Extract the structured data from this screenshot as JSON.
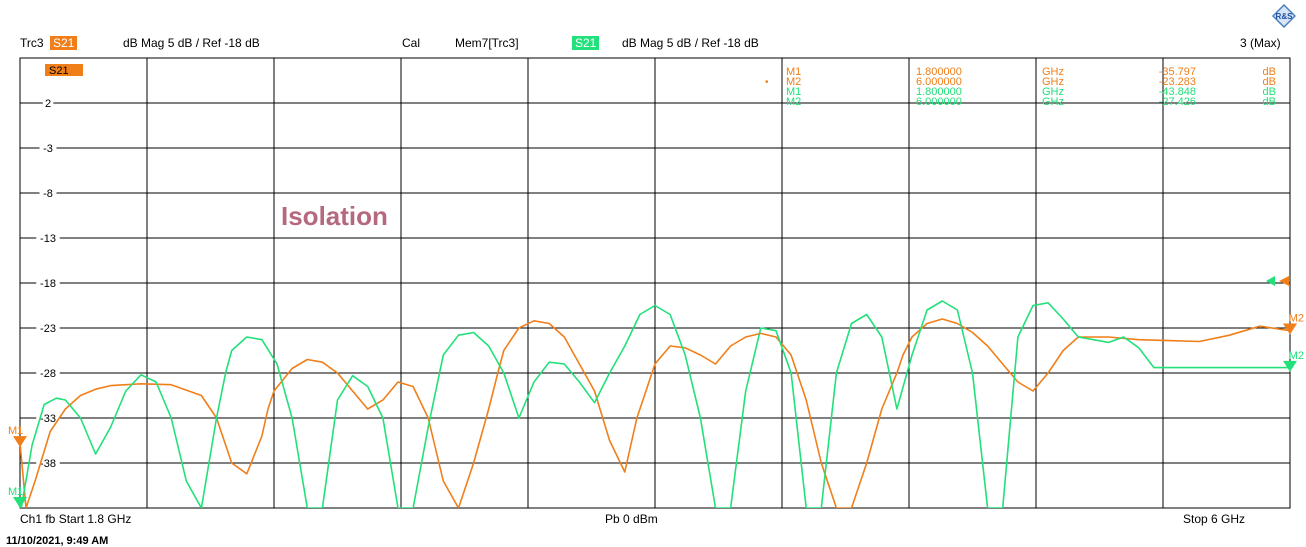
{
  "header": {
    "trace": "Trc3",
    "trace_param": "S21",
    "trace_format": "dB Mag  5 dB /  Ref -18 dB",
    "cal": "Cal",
    "mem": "Mem7[Trc3]",
    "mem_param": "S21",
    "mem_format": "dB Mag  5 dB /  Ref -18 dB",
    "max": "3 (Max)"
  },
  "logo": "R&S",
  "footer": {
    "channel": "Ch1  fb  Start  1.8 GHz",
    "power": "Pb   0 dBm",
    "stop": "Stop  6 GHz"
  },
  "date": "11/10/2021, 9:49 AM",
  "colors": {
    "trace": "#f07f1a",
    "memory": "#22e07a",
    "annotation": "#b5697e"
  },
  "chart_data": {
    "type": "line",
    "title": "Isolation",
    "param_badge": "S21",
    "xlabel": "",
    "ylabel": "",
    "xlim": [
      1.8,
      6.0
    ],
    "ylim": [
      -43,
      7
    ],
    "yticks": [
      2,
      -3,
      -8,
      -13,
      -18,
      -23,
      -28,
      -33,
      -38
    ],
    "ytick_labels": [
      "2",
      "-3",
      "-8",
      "-13",
      "-18",
      "-23",
      "-28",
      "-33",
      "-38"
    ],
    "reference_level": -18,
    "grid": true,
    "legend": "none",
    "series": [
      {
        "id": "trc3",
        "color": "#f07f1a",
        "x": [
          1.8,
          1.82,
          1.85,
          1.9,
          1.95,
          2.0,
          2.05,
          2.1,
          2.2,
          2.3,
          2.4,
          2.45,
          2.5,
          2.55,
          2.6,
          2.62,
          2.64,
          2.7,
          2.75,
          2.8,
          2.85,
          2.9,
          2.95,
          3.0,
          3.05,
          3.1,
          3.15,
          3.2,
          3.25,
          3.3,
          3.35,
          3.38,
          3.4,
          3.45,
          3.5,
          3.55,
          3.6,
          3.7,
          3.75,
          3.8,
          3.82,
          3.84,
          3.9,
          3.95,
          4.0,
          4.05,
          4.1,
          4.15,
          4.2,
          4.25,
          4.3,
          4.35,
          4.4,
          4.45,
          4.5,
          4.55,
          4.6,
          4.65,
          4.7,
          4.72,
          4.75,
          4.8,
          4.85,
          4.9,
          4.95,
          5.0,
          5.05,
          5.1,
          5.15,
          5.2,
          5.25,
          5.3,
          5.4,
          5.5,
          5.6,
          5.7,
          5.8,
          5.9,
          6.0
        ],
        "y": [
          -35.8,
          -43,
          -40,
          -34.5,
          -32,
          -30.5,
          -29.8,
          -29.4,
          -29.2,
          -29.3,
          -30.5,
          -33,
          -38,
          -39.2,
          -35,
          -32,
          -30,
          -27.5,
          -26.5,
          -26.8,
          -28,
          -30,
          -32,
          -31,
          -29,
          -29.5,
          -33,
          -40,
          -43,
          -38,
          -32,
          -28,
          -25.5,
          -23,
          -22.2,
          -22.5,
          -24,
          -30,
          -35.5,
          -39,
          -36,
          -33,
          -27,
          -25,
          -25.2,
          -26,
          -27,
          -25,
          -24,
          -23.6,
          -24,
          -26,
          -31,
          -38,
          -43,
          -43,
          -38,
          -32,
          -28,
          -26,
          -24,
          -22.5,
          -22,
          -22.5,
          -23.5,
          -25,
          -27,
          -29,
          -30,
          -28,
          -25.5,
          -24,
          -24,
          -24.3,
          -24.4,
          -24.5,
          -23.8,
          -22.8,
          -23.3
        ]
      },
      {
        "id": "mem7",
        "color": "#22e07a",
        "x": [
          1.8,
          1.84,
          1.88,
          1.92,
          1.95,
          2.0,
          2.05,
          2.1,
          2.15,
          2.2,
          2.25,
          2.3,
          2.35,
          2.4,
          2.45,
          2.48,
          2.5,
          2.55,
          2.6,
          2.65,
          2.7,
          2.75,
          2.8,
          2.85,
          2.9,
          2.95,
          3.0,
          3.05,
          3.1,
          3.15,
          3.2,
          3.25,
          3.3,
          3.35,
          3.4,
          3.45,
          3.5,
          3.55,
          3.6,
          3.65,
          3.7,
          3.75,
          3.8,
          3.85,
          3.9,
          3.95,
          4.0,
          4.05,
          4.1,
          4.15,
          4.2,
          4.25,
          4.3,
          4.35,
          4.4,
          4.45,
          4.5,
          4.55,
          4.6,
          4.65,
          4.7,
          4.75,
          4.8,
          4.85,
          4.9,
          4.95,
          5.0,
          5.05,
          5.1,
          5.15,
          5.2,
          5.25,
          5.3,
          5.35,
          5.4,
          5.45,
          5.5,
          5.55,
          5.6,
          5.65,
          5.7,
          5.75,
          5.8,
          5.85,
          5.9,
          5.95,
          6.0
        ],
        "y": [
          -43.8,
          -36,
          -31.5,
          -30.8,
          -31,
          -33,
          -37,
          -34,
          -30,
          -28.2,
          -29,
          -33,
          -40,
          -43,
          -33,
          -28,
          -25.5,
          -24,
          -24.3,
          -27,
          -33,
          -43,
          -43,
          -31,
          -28.3,
          -29.5,
          -33,
          -43,
          -43,
          -34,
          -26,
          -23.8,
          -23.5,
          -25,
          -28,
          -33,
          -29,
          -26.8,
          -27,
          -29,
          -31.3,
          -28,
          -25,
          -21.5,
          -20.5,
          -21.5,
          -26,
          -33,
          -43,
          -43,
          -30,
          -23,
          -23.3,
          -28,
          -43,
          -43,
          -28,
          -22.5,
          -21.5,
          -24,
          -32,
          -26,
          -21,
          -20,
          -21,
          -28,
          -43,
          -43,
          -24,
          -20.5,
          -20.2,
          -22,
          -24,
          -24.3,
          -24.6,
          -24,
          -25.2,
          -27.4,
          -27.4,
          -27.4,
          -27.4,
          -27.4,
          -27.4,
          -27.4,
          -27.4,
          -27.4,
          -27.4
        ]
      }
    ],
    "markers": [
      {
        "series": "trc3",
        "name": "M1",
        "x": 1.8,
        "y": -35.797
      },
      {
        "series": "trc3",
        "name": "M2",
        "x": 6.0,
        "y": -23.283
      },
      {
        "series": "mem7",
        "name": "M1",
        "x": 1.8,
        "y": -43.848
      },
      {
        "series": "mem7",
        "name": "M2",
        "x": 6.0,
        "y": -27.426
      }
    ],
    "marker_table": [
      {
        "marker": "M1",
        "freq": "1.800000",
        "unit": "GHz",
        "value": "-35.797",
        "vunit": "dB",
        "color": "#f07f1a",
        "active": false
      },
      {
        "marker": "M2",
        "freq": "6.000000",
        "unit": "GHz",
        "value": "-23.283",
        "vunit": "dB",
        "color": "#f07f1a",
        "active": true
      },
      {
        "marker": "M1",
        "freq": "1.800000",
        "unit": "GHz",
        "value": "-43.848",
        "vunit": "dB",
        "color": "#22e07a",
        "active": false
      },
      {
        "marker": "M2",
        "freq": "6.000000",
        "unit": "GHz",
        "value": "-27.426",
        "vunit": "dB",
        "color": "#22e07a",
        "active": false
      }
    ]
  }
}
